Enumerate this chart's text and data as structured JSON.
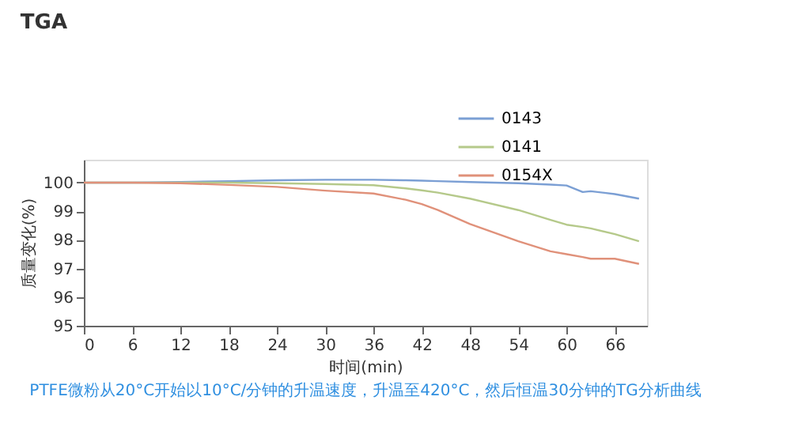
{
  "chart_data": {
    "type": "line",
    "title": "TGA",
    "xlabel": "时间(min)",
    "ylabel": "质量变化(%)",
    "annotations": [
      "PTFE微粉从20°C开始以10°C/分钟的升温速度，升温至420°C，然后恒温30分钟的TG分析曲线"
    ],
    "x": [
      0,
      6,
      12,
      18,
      24,
      30,
      36,
      40,
      42,
      44,
      48,
      54,
      58,
      60,
      62,
      63,
      66,
      69
    ],
    "series": [
      {
        "name": "0143",
        "color": "#7b9fd4",
        "values": [
          100,
          100,
          100.02,
          100.05,
          100.08,
          100.1,
          100.1,
          100.08,
          100.07,
          100.05,
          100.02,
          99.98,
          99.93,
          99.9,
          99.67,
          99.7,
          99.6,
          99.44
        ]
      },
      {
        "name": "0141",
        "color": "#b5c98a",
        "values": [
          100,
          100,
          100,
          100,
          99.98,
          99.95,
          99.91,
          99.8,
          99.73,
          99.65,
          99.44,
          99.04,
          98.7,
          98.53,
          98.45,
          98.4,
          98.2,
          97.95
        ]
      },
      {
        "name": "0154X",
        "color": "#e0917a",
        "values": [
          100,
          100,
          99.98,
          99.92,
          99.85,
          99.72,
          99.62,
          99.4,
          99.25,
          99.04,
          98.55,
          97.95,
          97.6,
          97.5,
          97.4,
          97.34,
          97.34,
          97.16
        ]
      }
    ],
    "xlim": [
      0,
      70
    ],
    "ylim": [
      95,
      100.8
    ],
    "xticks": [
      0,
      6,
      12,
      18,
      24,
      30,
      36,
      42,
      48,
      54,
      60,
      66
    ],
    "yticks": [
      95,
      96,
      97,
      98,
      99,
      100
    ],
    "grid": false,
    "legend": "top right",
    "line_style": "solid",
    "marker": "none"
  }
}
